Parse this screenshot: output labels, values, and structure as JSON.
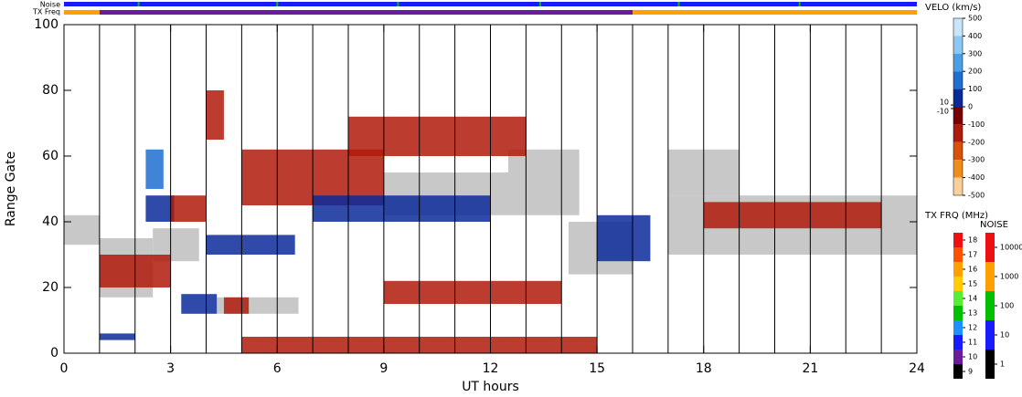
{
  "chart_data": {
    "type": "range-time",
    "noise_label": "Noise",
    "txfreq_label": "TX Freq",
    "x_label": "UT hours",
    "y_label": "Range Gate",
    "xlim": [
      0,
      24
    ],
    "xticks": [
      0,
      3,
      6,
      9,
      12,
      15,
      18,
      21,
      24
    ],
    "xgrid": [
      1,
      2,
      3,
      4,
      5,
      6,
      7,
      8,
      9,
      10,
      11,
      12,
      13,
      14,
      15,
      16,
      17,
      18,
      19,
      20,
      21,
      22,
      23
    ],
    "ylim": [
      0,
      100
    ],
    "yticks": [
      0,
      20,
      40,
      60,
      80,
      100
    ],
    "ground_scatter_color": "#c8c8c8",
    "velocity_scale": {
      "title": "VELO (km/s)",
      "lim": [
        -500,
        500
      ],
      "ticks": [
        500,
        400,
        300,
        200,
        100,
        10,
        0,
        -10,
        -100,
        -200,
        -300,
        -400,
        -500
      ],
      "colors": [
        "#c8e6fa",
        "#8cc8f5",
        "#4a9fe6",
        "#1f6fd1",
        "#0a2a9a",
        "#7a0000",
        "#b01a0a",
        "#d8500a",
        "#f08c1a",
        "#fbcf99"
      ]
    },
    "txfreq_scale": {
      "title": "TX FRQ (MHz)",
      "lim": [
        9,
        19
      ],
      "ticks": [
        18,
        17,
        16,
        15,
        14,
        13,
        12,
        11,
        10,
        9
      ],
      "colors": [
        "#000000",
        "#6a1b9a",
        "#1a1aff",
        "#1e90ff",
        "#00c000",
        "#55ee33",
        "#ffcc00",
        "#ffa000",
        "#ff5000",
        "#ee1010"
      ]
    },
    "noise_scale": {
      "title": "NOISE",
      "ticks": [
        10000,
        1000,
        100,
        10,
        1
      ],
      "colors": [
        "#000000",
        "#1a1aff",
        "#00c000",
        "#ffa000",
        "#ee1010"
      ]
    },
    "txfreq": [
      {
        "start": 0,
        "end": 1,
        "value": 16
      },
      {
        "start": 1,
        "end": 16,
        "value": 10
      },
      {
        "start": 16,
        "end": 24,
        "value": 16
      }
    ],
    "noise": [
      {
        "start": 0,
        "end": 24,
        "value": 10
      }
    ],
    "noise_spikes": {
      "x": [
        2.1,
        6.0,
        9.4,
        13.4,
        17.3,
        20.7
      ],
      "value": 100
    },
    "ground_scatter": [
      {
        "t0": 0,
        "t1": 1,
        "g0": 33,
        "g1": 42
      },
      {
        "t0": 1,
        "t1": 2.5,
        "g0": 17,
        "g1": 35
      },
      {
        "t0": 2.5,
        "t1": 3.8,
        "g0": 28,
        "g1": 38
      },
      {
        "t0": 4.3,
        "t1": 6.6,
        "g0": 12,
        "g1": 17
      },
      {
        "t0": 9,
        "t1": 14.5,
        "g0": 42,
        "g1": 55
      },
      {
        "t0": 14.2,
        "t1": 16,
        "g0": 24,
        "g1": 40
      },
      {
        "t0": 17,
        "t1": 24,
        "g0": 30,
        "g1": 48
      },
      {
        "t0": 17,
        "t1": 19,
        "g0": 48,
        "g1": 62
      },
      {
        "t0": 12.5,
        "t1": 14.5,
        "g0": 55,
        "g1": 62
      }
    ],
    "scatter": [
      {
        "t0": 1,
        "t1": 3,
        "g0": 20,
        "g1": 30,
        "value": -150
      },
      {
        "t0": 2.3,
        "t1": 2.8,
        "g0": 50,
        "g1": 62,
        "value": 150
      },
      {
        "t0": 2.3,
        "t1": 3.1,
        "g0": 40,
        "g1": 48,
        "value": 100
      },
      {
        "t0": 3,
        "t1": 4,
        "g0": 40,
        "g1": 48,
        "value": -100
      },
      {
        "t0": 4,
        "t1": 6.5,
        "g0": 30,
        "g1": 36,
        "value": 100
      },
      {
        "t0": 3.3,
        "t1": 4.3,
        "g0": 12,
        "g1": 18,
        "value": 100
      },
      {
        "t0": 4.5,
        "t1": 5.2,
        "g0": 12,
        "g1": 17,
        "value": -100
      },
      {
        "t0": 1,
        "t1": 2,
        "g0": 4,
        "g1": 6,
        "value": 100
      },
      {
        "t0": 5,
        "t1": 9,
        "g0": 45,
        "g1": 62,
        "value": -150
      },
      {
        "t0": 8,
        "t1": 13,
        "g0": 60,
        "g1": 72,
        "value": -150
      },
      {
        "t0": 9,
        "t1": 14,
        "g0": 15,
        "g1": 22,
        "value": -150
      },
      {
        "t0": 5,
        "t1": 15,
        "g0": 0,
        "g1": 5,
        "value": -150
      },
      {
        "t0": 4,
        "t1": 4.5,
        "g0": 65,
        "g1": 80,
        "value": -150
      },
      {
        "t0": 15,
        "t1": 16.5,
        "g0": 28,
        "g1": 42,
        "value": 100
      },
      {
        "t0": 18,
        "t1": 23,
        "g0": 38,
        "g1": 46,
        "value": -100
      },
      {
        "t0": 7,
        "t1": 12,
        "g0": 40,
        "g1": 48,
        "value": 100
      }
    ]
  }
}
